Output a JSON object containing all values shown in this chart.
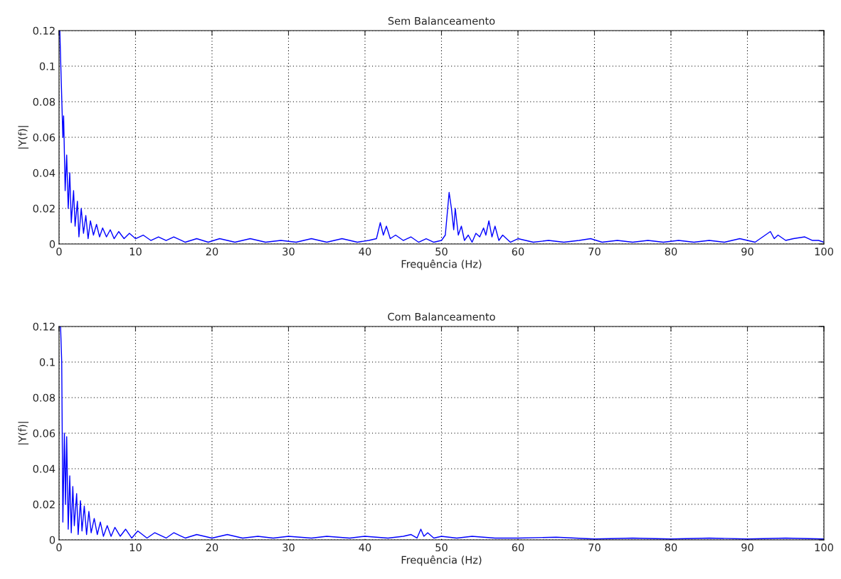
{
  "chart_data": [
    {
      "type": "line",
      "title": "Sem Balanceamento",
      "xlabel": "Frequência (Hz)",
      "ylabel": "|Y(f)|",
      "xlim": [
        0,
        100
      ],
      "ylim": [
        0,
        0.12
      ],
      "xticks": [
        0,
        10,
        20,
        30,
        40,
        50,
        60,
        70,
        80,
        90,
        100
      ],
      "yticks": [
        0,
        0.02,
        0.04,
        0.06,
        0.08,
        0.1,
        0.12
      ],
      "grid": true,
      "line_style": "solid",
      "marker": "none",
      "series": [
        {
          "color": "#0000ff",
          "x": [
            0,
            0.1,
            0.3,
            0.5,
            0.6,
            0.8,
            1.0,
            1.2,
            1.4,
            1.6,
            1.9,
            2.1,
            2.4,
            2.6,
            2.9,
            3.2,
            3.5,
            3.8,
            4.1,
            4.5,
            4.9,
            5.3,
            5.7,
            6.2,
            6.7,
            7.2,
            7.8,
            8.5,
            9.2,
            10,
            11,
            12,
            13,
            14,
            15,
            16.5,
            18,
            19.5,
            21,
            23,
            25,
            27,
            29,
            31,
            33,
            35,
            37,
            39,
            40.5,
            41.5,
            42,
            42.4,
            42.8,
            43.3,
            44,
            45,
            46,
            47,
            48,
            49,
            50,
            50.5,
            51,
            51.3,
            51.6,
            51.8,
            52.2,
            52.6,
            53,
            53.5,
            54,
            54.5,
            55,
            55.5,
            55.8,
            56.2,
            56.6,
            57,
            57.5,
            58,
            59,
            60,
            62,
            64,
            66,
            68,
            69.5,
            71,
            73,
            75,
            77,
            79,
            81,
            83,
            85,
            87,
            89,
            91,
            92,
            93,
            93.5,
            94,
            95,
            96,
            97.5,
            98.5,
            99.3,
            100
          ],
          "values": [
            0.12,
            0.12,
            0.09,
            0.06,
            0.072,
            0.03,
            0.05,
            0.02,
            0.04,
            0.012,
            0.03,
            0.01,
            0.024,
            0.004,
            0.02,
            0.006,
            0.016,
            0.003,
            0.013,
            0.005,
            0.011,
            0.004,
            0.009,
            0.004,
            0.008,
            0.003,
            0.007,
            0.003,
            0.006,
            0.003,
            0.005,
            0.002,
            0.004,
            0.002,
            0.004,
            0.001,
            0.003,
            0.001,
            0.003,
            0.001,
            0.003,
            0.001,
            0.002,
            0.001,
            0.003,
            0.001,
            0.003,
            0.001,
            0.002,
            0.003,
            0.012,
            0.005,
            0.01,
            0.003,
            0.005,
            0.002,
            0.004,
            0.001,
            0.003,
            0.001,
            0.002,
            0.005,
            0.029,
            0.02,
            0.008,
            0.02,
            0.005,
            0.01,
            0.002,
            0.005,
            0.001,
            0.006,
            0.004,
            0.009,
            0.005,
            0.013,
            0.004,
            0.01,
            0.002,
            0.005,
            0.001,
            0.003,
            0.001,
            0.002,
            0.001,
            0.002,
            0.003,
            0.001,
            0.002,
            0.001,
            0.002,
            0.001,
            0.002,
            0.001,
            0.002,
            0.001,
            0.003,
            0.001,
            0.004,
            0.007,
            0.003,
            0.005,
            0.002,
            0.003,
            0.004,
            0.002,
            0.002,
            0.001
          ]
        }
      ]
    },
    {
      "type": "line",
      "title": "Com Balanceamento",
      "xlabel": "Frequência (Hz)",
      "ylabel": "|Y(f)|",
      "xlim": [
        0,
        100
      ],
      "ylim": [
        0,
        0.12
      ],
      "xticks": [
        0,
        10,
        20,
        30,
        40,
        50,
        60,
        70,
        80,
        90,
        100
      ],
      "yticks": [
        0,
        0.02,
        0.04,
        0.06,
        0.08,
        0.1,
        0.12
      ],
      "grid": true,
      "line_style": "solid",
      "marker": "none",
      "series": [
        {
          "color": "#0000ff",
          "x": [
            0,
            0.2,
            0.35,
            0.5,
            0.7,
            0.85,
            1.0,
            1.2,
            1.4,
            1.6,
            1.8,
            2.0,
            2.3,
            2.5,
            2.8,
            3.0,
            3.3,
            3.6,
            3.9,
            4.2,
            4.6,
            5.0,
            5.4,
            5.8,
            6.3,
            6.8,
            7.3,
            8,
            8.7,
            9.5,
            10.3,
            11.5,
            12.5,
            14,
            15,
            16.5,
            18,
            20,
            22,
            24,
            26,
            28,
            30,
            33,
            35,
            38,
            40,
            43,
            45,
            46,
            46.8,
            47.3,
            47.7,
            48.2,
            49,
            50,
            52,
            54,
            57,
            60,
            65,
            70,
            75,
            80,
            85,
            90,
            95,
            100
          ],
          "values": [
            0.12,
            0.12,
            0.1,
            0.01,
            0.06,
            0.02,
            0.058,
            0.006,
            0.036,
            0.004,
            0.03,
            0.008,
            0.026,
            0.003,
            0.022,
            0.005,
            0.019,
            0.003,
            0.016,
            0.004,
            0.012,
            0.003,
            0.01,
            0.002,
            0.008,
            0.002,
            0.007,
            0.002,
            0.006,
            0.001,
            0.005,
            0.001,
            0.004,
            0.001,
            0.004,
            0.001,
            0.003,
            0.001,
            0.003,
            0.001,
            0.002,
            0.001,
            0.002,
            0.001,
            0.002,
            0.001,
            0.002,
            0.001,
            0.002,
            0.003,
            0.001,
            0.006,
            0.002,
            0.004,
            0.001,
            0.002,
            0.001,
            0.002,
            0.001,
            0.001,
            0.0015,
            0.0005,
            0.001,
            0.0005,
            0.001,
            0.0005,
            0.001,
            0.0005
          ]
        }
      ]
    }
  ]
}
